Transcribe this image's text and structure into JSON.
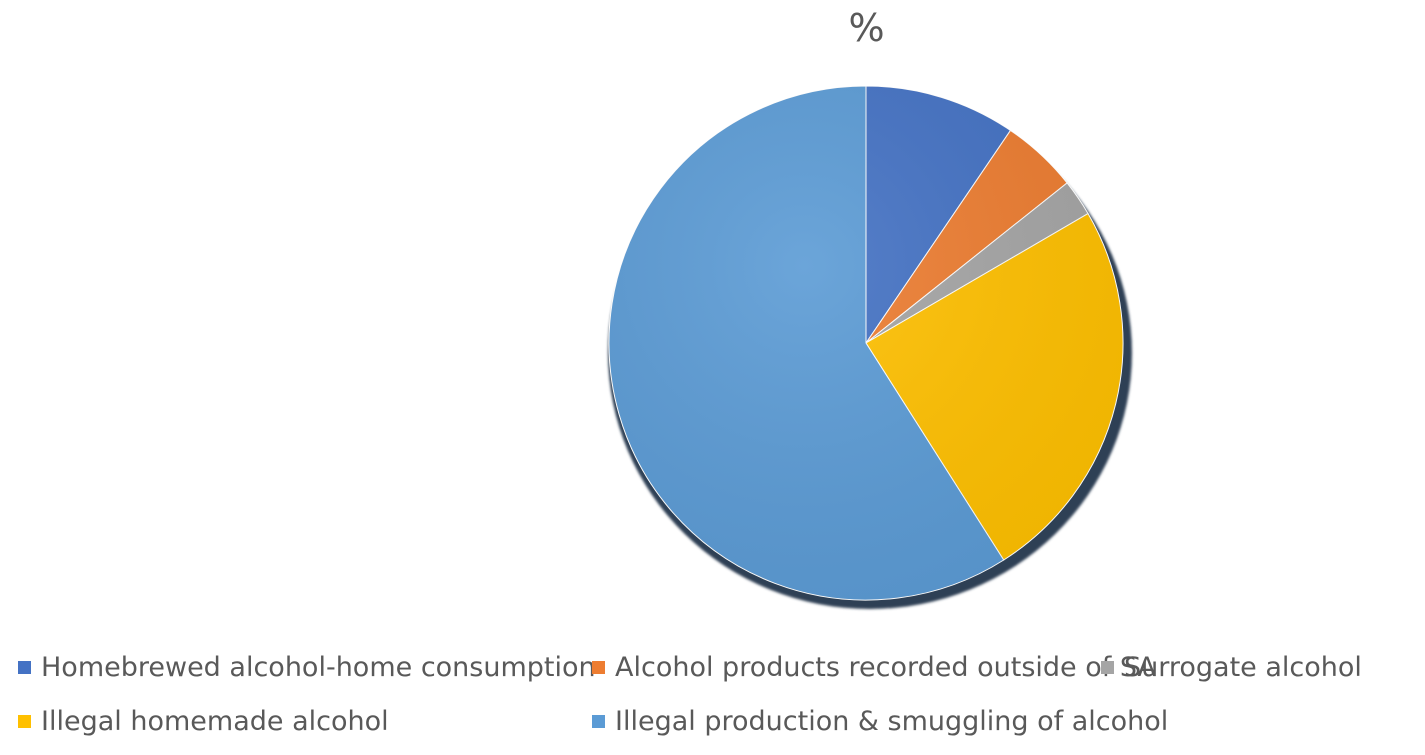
{
  "chart_data": {
    "type": "pie",
    "title": "%",
    "slices": [
      {
        "label": "Homebrewed alcohol-home consumption",
        "value": 9.5,
        "color": "#4472C4"
      },
      {
        "label": "Alcohol products recorded outside of SA",
        "value": 4.8,
        "color": "#ED7D31"
      },
      {
        "label": "Surrogate alcohol",
        "value": 2.3,
        "color": "#A5A5A5"
      },
      {
        "label": "Illegal homemade alcohol",
        "value": 24.4,
        "color": "#FFC000"
      },
      {
        "label": "Illegal production & smuggling of alcohol",
        "value": 59.0,
        "color": "#5B9BD5"
      }
    ],
    "legend_position": "bottom"
  }
}
